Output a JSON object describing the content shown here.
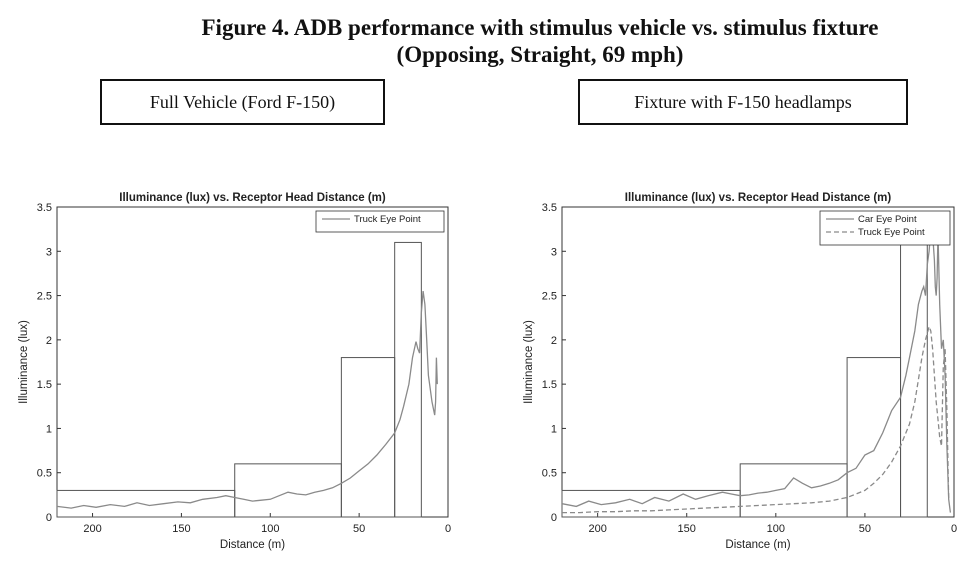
{
  "figure": {
    "title_line1": "Figure 4. ADB performance with stimulus vehicle vs. stimulus fixture",
    "title_line2": "(Opposing, Straight, 69 mph)"
  },
  "panels": {
    "left_label": "Full Vehicle (Ford F-150)",
    "right_label": "Fixture with F-150 headlamps"
  },
  "colors": {
    "axis": "#333333",
    "curve": "#8a8a8a",
    "threshold": "#555555"
  },
  "chart_data": [
    {
      "type": "line",
      "title": "Illuminance (lux) vs. Receptor Head Distance (m)",
      "xlabel": "Distance (m)",
      "ylabel": "Illuminance (lux)",
      "xlim": [
        220,
        0
      ],
      "ylim": [
        0,
        3.5
      ],
      "xticks": [
        200,
        150,
        100,
        50,
        0
      ],
      "yticks": [
        0,
        0.5,
        1,
        1.5,
        2,
        2.5,
        3,
        3.5
      ],
      "grid": false,
      "legend_position": "top-right",
      "threshold_steps": [
        {
          "x_from": 220,
          "x_to": 120,
          "y": 0.3
        },
        {
          "x_from": 120,
          "x_to": 60,
          "y": 0.6
        },
        {
          "x_from": 60,
          "x_to": 30,
          "y": 1.8
        },
        {
          "x_from": 30,
          "x_to": 15,
          "y": 3.1
        }
      ],
      "series": [
        {
          "name": "Truck Eye Point",
          "style": "solid",
          "x": [
            220,
            212,
            205,
            198,
            190,
            182,
            175,
            168,
            160,
            152,
            145,
            138,
            130,
            125,
            120,
            115,
            110,
            105,
            100,
            95,
            90,
            85,
            80,
            75,
            70,
            65,
            60,
            55,
            50,
            45,
            40,
            35,
            30,
            27,
            25,
            22,
            20,
            18,
            17,
            16,
            15,
            14,
            13,
            12,
            11,
            10,
            9,
            8,
            7.5,
            7,
            6.5,
            6
          ],
          "y": [
            0.12,
            0.1,
            0.13,
            0.11,
            0.14,
            0.12,
            0.16,
            0.13,
            0.15,
            0.17,
            0.16,
            0.2,
            0.22,
            0.24,
            0.22,
            0.2,
            0.18,
            0.19,
            0.2,
            0.24,
            0.28,
            0.26,
            0.25,
            0.28,
            0.3,
            0.33,
            0.38,
            0.44,
            0.52,
            0.6,
            0.7,
            0.82,
            0.95,
            1.1,
            1.25,
            1.5,
            1.8,
            1.98,
            1.9,
            1.85,
            2.3,
            2.55,
            2.4,
            2.0,
            1.6,
            1.45,
            1.3,
            1.2,
            1.15,
            1.3,
            1.8,
            1.5
          ]
        }
      ]
    },
    {
      "type": "line",
      "title": "Illuminance (lux) vs. Receptor Head Distance (m)",
      "xlabel": "Distance (m)",
      "ylabel": "Illuminance (lux)",
      "xlim": [
        220,
        0
      ],
      "ylim": [
        0,
        3.5
      ],
      "xticks": [
        200,
        150,
        100,
        50,
        0
      ],
      "yticks": [
        0,
        0.5,
        1,
        1.5,
        2,
        2.5,
        3,
        3.5
      ],
      "grid": false,
      "legend_position": "top-right",
      "threshold_steps": [
        {
          "x_from": 220,
          "x_to": 120,
          "y": 0.3
        },
        {
          "x_from": 120,
          "x_to": 60,
          "y": 0.6
        },
        {
          "x_from": 60,
          "x_to": 30,
          "y": 1.8
        },
        {
          "x_from": 30,
          "x_to": 15,
          "y": 3.1
        }
      ],
      "series": [
        {
          "name": "Car Eye Point",
          "style": "solid",
          "x": [
            220,
            212,
            205,
            198,
            190,
            182,
            175,
            168,
            160,
            152,
            145,
            138,
            130,
            125,
            120,
            115,
            110,
            105,
            100,
            95,
            90,
            85,
            80,
            75,
            70,
            65,
            60,
            55,
            50,
            45,
            40,
            35,
            30,
            27,
            25,
            22,
            20,
            18,
            17,
            16,
            15,
            14,
            13,
            12,
            11,
            10.5,
            10,
            9.5,
            9,
            8,
            7,
            6,
            5,
            4,
            3,
            2
          ],
          "y": [
            0.15,
            0.12,
            0.18,
            0.14,
            0.16,
            0.2,
            0.15,
            0.22,
            0.18,
            0.26,
            0.2,
            0.24,
            0.28,
            0.26,
            0.24,
            0.25,
            0.27,
            0.28,
            0.3,
            0.32,
            0.44,
            0.38,
            0.33,
            0.35,
            0.38,
            0.42,
            0.5,
            0.55,
            0.7,
            0.75,
            0.95,
            1.2,
            1.35,
            1.6,
            1.8,
            2.1,
            2.4,
            2.55,
            2.6,
            2.5,
            2.85,
            3.0,
            3.25,
            3.2,
            2.9,
            2.6,
            2.5,
            2.7,
            3.2,
            2.4,
            1.9,
            2.0,
            1.6,
            0.8,
            0.2,
            0.05
          ]
        },
        {
          "name": "Truck Eye Point",
          "style": "dashed",
          "x": [
            220,
            210,
            200,
            190,
            180,
            170,
            160,
            150,
            140,
            130,
            120,
            110,
            100,
            90,
            80,
            70,
            60,
            55,
            50,
            45,
            40,
            35,
            30,
            25,
            22,
            20,
            18,
            16,
            14,
            13,
            12,
            11,
            10,
            9,
            8,
            7,
            6,
            5,
            4,
            3
          ],
          "y": [
            0.05,
            0.05,
            0.06,
            0.06,
            0.07,
            0.07,
            0.08,
            0.09,
            0.1,
            0.11,
            0.12,
            0.13,
            0.14,
            0.15,
            0.16,
            0.18,
            0.22,
            0.26,
            0.3,
            0.38,
            0.48,
            0.62,
            0.8,
            1.05,
            1.3,
            1.55,
            1.8,
            2.0,
            2.15,
            2.1,
            1.9,
            1.6,
            1.3,
            1.1,
            0.9,
            0.8,
            1.7,
            1.9,
            1.2,
            0.2
          ]
        }
      ]
    }
  ]
}
